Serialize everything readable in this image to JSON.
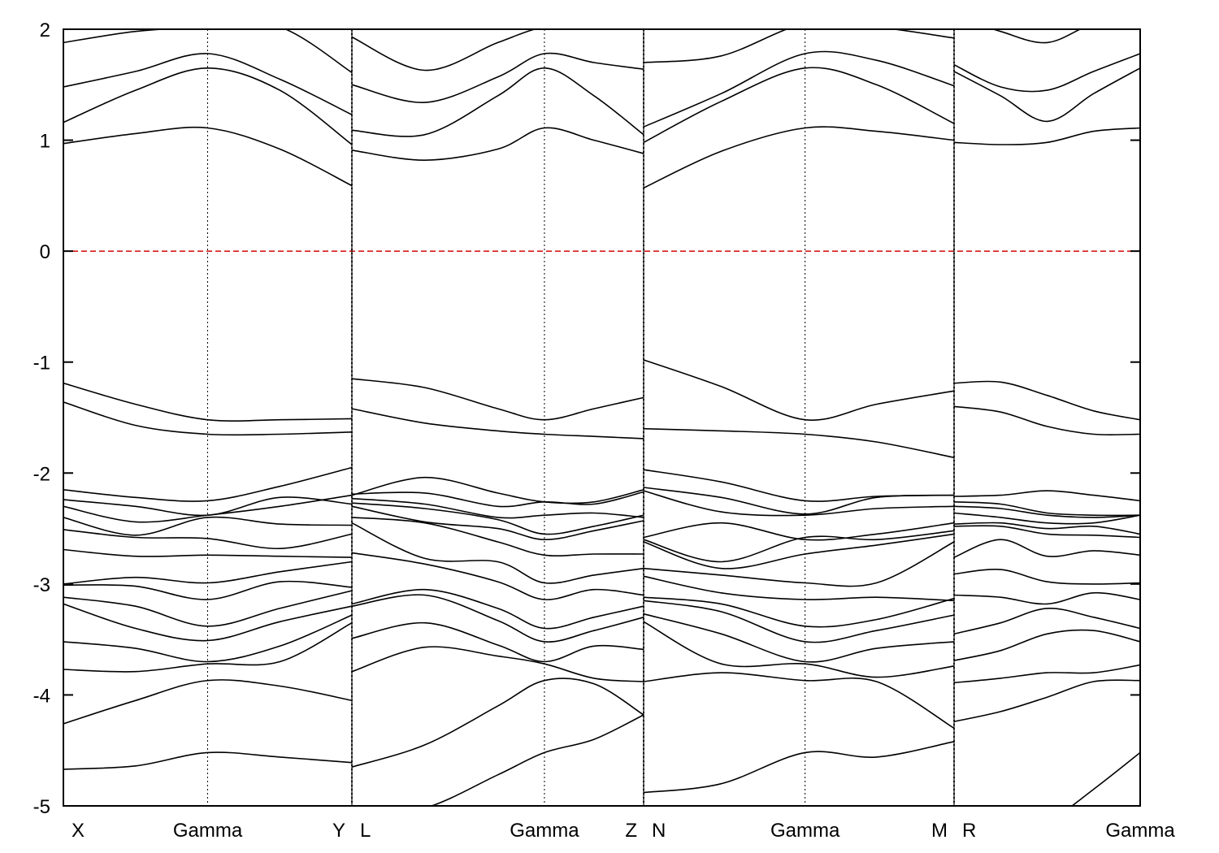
{
  "chart_data": {
    "type": "line",
    "title": "",
    "xlabel": "",
    "ylabel": "",
    "ylim": [
      -5,
      2
    ],
    "yticks": [
      2,
      1,
      0,
      -1,
      -2,
      -3,
      -4,
      -5
    ],
    "grid": false,
    "fermi_level": {
      "y": 0,
      "color": "#d81b1b"
    },
    "band_color": "#000000",
    "kpath": [
      {
        "name": "X",
        "segment": 0,
        "x": 0.0
      },
      {
        "name": "Gamma",
        "segment": 0,
        "x": 0.5
      },
      {
        "name": "Y",
        "segment": 0,
        "x": 1.0
      },
      {
        "name": "L",
        "segment": 1,
        "x": 0.0
      },
      {
        "name": "Gamma",
        "segment": 1,
        "x": 0.66
      },
      {
        "name": "Z",
        "segment": 1,
        "x": 1.0
      },
      {
        "name": "N",
        "segment": 2,
        "x": 0.0
      },
      {
        "name": "Gamma",
        "segment": 2,
        "x": 0.52
      },
      {
        "name": "M",
        "segment": 2,
        "x": 1.0
      },
      {
        "name": "R",
        "segment": 3,
        "x": 0.0
      },
      {
        "name": "Gamma",
        "segment": 3,
        "x": 1.0
      }
    ],
    "segments": [
      {
        "path": "X-Gamma-Y",
        "x": [
          0,
          0.25,
          0.5,
          0.75,
          1.0
        ],
        "bands": [
          [
            -4.67,
            -4.64,
            -4.52,
            -4.56,
            -4.61
          ],
          [
            -4.26,
            -4.05,
            -3.87,
            -3.92,
            -4.05
          ],
          [
            -3.77,
            -3.79,
            -3.72,
            -3.7,
            -3.35
          ],
          [
            -3.52,
            -3.58,
            -3.7,
            -3.56,
            -3.28
          ],
          [
            -3.18,
            -3.4,
            -3.51,
            -3.34,
            -3.2
          ],
          [
            -3.12,
            -3.2,
            -3.38,
            -3.22,
            -3.06
          ],
          [
            -3.01,
            -3.02,
            -3.14,
            -2.98,
            -3.03
          ],
          [
            -3.0,
            -2.94,
            -2.99,
            -2.89,
            -2.8
          ],
          [
            -2.69,
            -2.75,
            -2.74,
            -2.75,
            -2.76
          ],
          [
            -2.51,
            -2.58,
            -2.59,
            -2.68,
            -2.55
          ],
          [
            -2.4,
            -2.56,
            -2.4,
            -2.46,
            -2.47
          ],
          [
            -2.3,
            -2.44,
            -2.38,
            -2.3,
            -2.2
          ],
          [
            -2.24,
            -2.3,
            -2.38,
            -2.22,
            -2.28
          ],
          [
            -2.15,
            -2.22,
            -2.25,
            -2.12,
            -1.95
          ],
          [
            -1.36,
            -1.57,
            -1.65,
            -1.65,
            -1.63
          ],
          [
            -1.19,
            -1.38,
            -1.52,
            -1.52,
            -1.51
          ],
          [
            0.97,
            1.06,
            1.11,
            0.92,
            0.59
          ],
          [
            1.16,
            1.45,
            1.65,
            1.45,
            0.96
          ],
          [
            1.48,
            1.62,
            1.78,
            1.55,
            1.23
          ],
          [
            1.88,
            1.98,
            2.02,
            2.02,
            1.61
          ]
        ]
      },
      {
        "path": "L-Gamma-Z",
        "x": [
          0,
          0.25,
          0.5,
          0.66,
          0.83,
          1.0
        ],
        "bands": [
          [
            -5.1,
            -5.02,
            -4.72,
            -4.52,
            -4.4,
            -4.18
          ],
          [
            -4.65,
            -4.45,
            -4.1,
            -3.87,
            -3.9,
            -4.18
          ],
          [
            -3.79,
            -3.57,
            -3.65,
            -3.72,
            -3.85,
            -3.88
          ],
          [
            -3.49,
            -3.35,
            -3.55,
            -3.7,
            -3.56,
            -3.59
          ],
          [
            -3.2,
            -3.1,
            -3.33,
            -3.52,
            -3.42,
            -3.3
          ],
          [
            -3.18,
            -3.05,
            -3.22,
            -3.4,
            -3.3,
            -3.2
          ],
          [
            -2.72,
            -2.82,
            -2.98,
            -3.14,
            -3.05,
            -3.1
          ],
          [
            -2.45,
            -2.77,
            -2.8,
            -2.99,
            -2.92,
            -2.86
          ],
          [
            -2.4,
            -2.45,
            -2.62,
            -2.74,
            -2.73,
            -2.73
          ],
          [
            -2.3,
            -2.44,
            -2.5,
            -2.6,
            -2.52,
            -2.43
          ],
          [
            -2.27,
            -2.32,
            -2.42,
            -2.55,
            -2.48,
            -2.38
          ],
          [
            -2.23,
            -2.28,
            -2.4,
            -2.38,
            -2.36,
            -2.4
          ],
          [
            -2.19,
            -2.18,
            -2.3,
            -2.26,
            -2.28,
            -2.17
          ],
          [
            -2.2,
            -2.04,
            -2.18,
            -2.26,
            -2.26,
            -2.15
          ],
          [
            -1.42,
            -1.55,
            -1.62,
            -1.65,
            -1.67,
            -1.69
          ],
          [
            -1.15,
            -1.23,
            -1.42,
            -1.52,
            -1.42,
            -1.32
          ],
          [
            0.91,
            0.82,
            0.92,
            1.11,
            1.0,
            0.88
          ],
          [
            1.09,
            1.05,
            1.4,
            1.65,
            1.4,
            1.05
          ],
          [
            1.5,
            1.34,
            1.57,
            1.78,
            1.7,
            1.64
          ],
          [
            1.93,
            1.63,
            1.88,
            2.02,
            2.03,
            2.05
          ]
        ]
      },
      {
        "path": "N-Gamma-M",
        "x": [
          0,
          0.25,
          0.52,
          0.75,
          1.0
        ],
        "bands": [
          [
            -4.88,
            -4.8,
            -4.52,
            -4.56,
            -4.42
          ],
          [
            -3.88,
            -3.8,
            -3.87,
            -3.88,
            -4.3
          ],
          [
            -3.34,
            -3.72,
            -3.72,
            -3.84,
            -3.74
          ],
          [
            -3.27,
            -3.45,
            -3.7,
            -3.58,
            -3.52
          ],
          [
            -3.15,
            -3.25,
            -3.52,
            -3.42,
            -3.28
          ],
          [
            -3.12,
            -3.18,
            -3.38,
            -3.32,
            -3.13
          ],
          [
            -2.93,
            -3.08,
            -3.14,
            -3.12,
            -3.15
          ],
          [
            -2.86,
            -2.92,
            -2.99,
            -2.99,
            -2.62
          ],
          [
            -2.62,
            -2.86,
            -2.73,
            -2.65,
            -2.55
          ],
          [
            -2.6,
            -2.8,
            -2.58,
            -2.6,
            -2.52
          ],
          [
            -2.58,
            -2.45,
            -2.6,
            -2.55,
            -2.45
          ],
          [
            -2.16,
            -2.35,
            -2.38,
            -2.32,
            -2.3
          ],
          [
            -2.13,
            -2.22,
            -2.37,
            -2.22,
            -2.2
          ],
          [
            -1.97,
            -2.08,
            -2.25,
            -2.21,
            -2.2
          ],
          [
            -1.6,
            -1.62,
            -1.65,
            -1.72,
            -1.86
          ],
          [
            -0.98,
            -1.22,
            -1.52,
            -1.38,
            -1.26
          ],
          [
            0.57,
            0.9,
            1.11,
            1.08,
            1.0
          ],
          [
            0.98,
            1.35,
            1.65,
            1.5,
            1.15
          ],
          [
            1.12,
            1.42,
            1.78,
            1.72,
            1.49
          ],
          [
            1.7,
            1.76,
            2.05,
            2.02,
            1.92
          ]
        ]
      },
      {
        "path": "R-Gamma",
        "x": [
          0,
          0.25,
          0.5,
          0.75,
          1.0
        ],
        "bands": [
          [
            -5.3,
            -5.3,
            -5.15,
            -4.85,
            -4.52
          ],
          [
            -4.24,
            -4.15,
            -4.02,
            -3.88,
            -3.87
          ],
          [
            -3.89,
            -3.85,
            -3.8,
            -3.8,
            -3.73
          ],
          [
            -3.69,
            -3.6,
            -3.45,
            -3.42,
            -3.52
          ],
          [
            -3.45,
            -3.35,
            -3.22,
            -3.3,
            -3.4
          ],
          [
            -3.1,
            -3.12,
            -3.18,
            -3.08,
            -3.14
          ],
          [
            -2.91,
            -2.87,
            -2.98,
            -3.0,
            -2.99
          ],
          [
            -2.76,
            -2.6,
            -2.75,
            -2.7,
            -2.74
          ],
          [
            -2.48,
            -2.48,
            -2.55,
            -2.56,
            -2.58
          ],
          [
            -2.46,
            -2.45,
            -2.5,
            -2.48,
            -2.55
          ],
          [
            -2.36,
            -2.4,
            -2.45,
            -2.45,
            -2.38
          ],
          [
            -2.3,
            -2.32,
            -2.38,
            -2.4,
            -2.38
          ],
          [
            -2.26,
            -2.28,
            -2.36,
            -2.38,
            -2.38
          ],
          [
            -2.21,
            -2.2,
            -2.16,
            -2.2,
            -2.25
          ],
          [
            -1.4,
            -1.45,
            -1.58,
            -1.65,
            -1.65
          ],
          [
            -1.19,
            -1.18,
            -1.3,
            -1.44,
            -1.52
          ],
          [
            0.98,
            0.96,
            0.98,
            1.08,
            1.11
          ],
          [
            1.62,
            1.4,
            1.17,
            1.42,
            1.65
          ],
          [
            1.68,
            1.48,
            1.45,
            1.62,
            1.78
          ],
          [
            2.12,
            1.98,
            1.88,
            2.05,
            2.1
          ]
        ]
      }
    ]
  }
}
